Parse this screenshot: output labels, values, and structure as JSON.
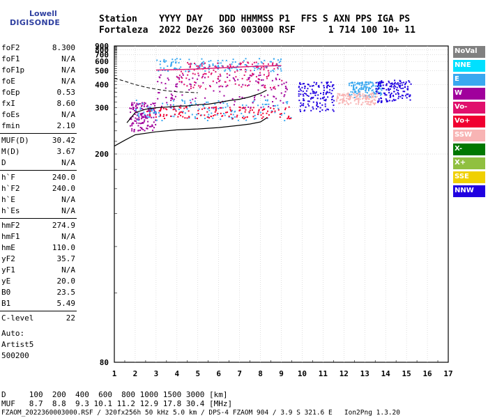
{
  "logo": {
    "line1": "Lowell",
    "line2": "DIGISONDE"
  },
  "header": {
    "row1": "Station    YYYY DAY   DDD HHMMSS P1  FFS S AXN PPS IGA PS",
    "row2": "Fortaleza  2022 Dez26 360 003000 RSF      1 714 100 10+ 11"
  },
  "params": [
    {
      "k": "foF2",
      "v": "8.300"
    },
    {
      "k": "foF1",
      "v": "N/A"
    },
    {
      "k": "foF1p",
      "v": "N/A"
    },
    {
      "k": "foE",
      "v": "N/A"
    },
    {
      "k": "foEp",
      "v": "0.53"
    },
    {
      "k": "fxI",
      "v": "8.60"
    },
    {
      "k": "foEs",
      "v": "N/A"
    },
    {
      "k": "fmin",
      "v": "2.10"
    },
    {
      "k": "MUF(D)",
      "v": "30.42"
    },
    {
      "k": "M(D)",
      "v": "3.67"
    },
    {
      "k": "D",
      "v": "N/A"
    },
    {
      "k": "h`F",
      "v": "240.0"
    },
    {
      "k": "h`F2",
      "v": "240.0"
    },
    {
      "k": "h`E",
      "v": "N/A"
    },
    {
      "k": "h`Es",
      "v": "N/A"
    },
    {
      "k": "hmF2",
      "v": "274.9"
    },
    {
      "k": "hmF1",
      "v": "N/A"
    },
    {
      "k": "hmE",
      "v": "110.0"
    },
    {
      "k": "yF2",
      "v": "35.7"
    },
    {
      "k": "yF1",
      "v": "N/A"
    },
    {
      "k": "yE",
      "v": "20.0"
    },
    {
      "k": "B0",
      "v": "23.5"
    },
    {
      "k": "B1",
      "v": "5.49"
    },
    {
      "k": "C-level",
      "v": "22"
    }
  ],
  "auto": {
    "l1": "Auto:",
    "l2": "Artist5",
    "l3": "500200"
  },
  "footer": {
    "row1": "D     100  200  400  600  800 1000 1500 3000 [km]",
    "row2": "MUF   8.7  8.8  9.3 10.1 11.2 12.9 17.8 30.4 [MHz]",
    "row3": "FZAOM_2022360003000.RSF / 320fx256h 50 kHz 5.0 km / DPS-4 FZAOM 904 / 3.9 S 321.6 E   Ion2Png 1.3.20"
  },
  "legend": [
    {
      "label": "NoVal",
      "color": "#808080"
    },
    {
      "label": "NNE",
      "color": "#00e0ff"
    },
    {
      "label": "E",
      "color": "#3aa8f0"
    },
    {
      "label": "W",
      "color": "#a0009c"
    },
    {
      "label": "Vo-",
      "color": "#e0106c"
    },
    {
      "label": "Vo+",
      "color": "#f00030"
    },
    {
      "label": "SSW",
      "color": "#f8b4b4"
    },
    {
      "label": "X-",
      "color": "#007800"
    },
    {
      "label": "X+",
      "color": "#90c040"
    },
    {
      "label": "SSE",
      "color": "#f0d000"
    },
    {
      "label": "NNW",
      "color": "#2000e0"
    }
  ],
  "chart_data": {
    "type": "scatter",
    "xlim": [
      1,
      17
    ],
    "ylim": [
      80,
      900
    ],
    "x_ticks": [
      1,
      2,
      3,
      4,
      5,
      6,
      7,
      8,
      9,
      10,
      11,
      12,
      13,
      14,
      15,
      16,
      17
    ],
    "y_ticks": [
      80,
      200,
      300,
      400,
      500,
      600,
      700,
      800,
      900
    ],
    "y_scale": "reciprocal",
    "grid": true,
    "legend_position": "right",
    "traces": [
      {
        "name": "F2 trace",
        "x": [
          1.6,
          2.0,
          2.5,
          3.0,
          3.5,
          4.0,
          4.5,
          5.0,
          5.5,
          6.0,
          6.5,
          7.0,
          7.5,
          8.0,
          8.3
        ],
        "y": [
          258,
          285,
          295,
          300,
          302,
          305,
          306,
          310,
          312,
          318,
          325,
          330,
          340,
          355,
          370
        ]
      },
      {
        "name": "Multihop trace",
        "x": [
          3.0,
          3.5,
          4.0,
          5.0,
          6.0,
          7.0,
          8.0,
          9.0
        ],
        "y": [
          505,
          508,
          510,
          515,
          525,
          535,
          545,
          550
        ]
      },
      {
        "name": "Profile curve",
        "x": [
          1.0,
          1.5,
          2.0,
          3.0,
          4.0,
          5.0,
          6.0,
          7.0,
          7.5,
          8.0,
          8.3
        ],
        "y": [
          212,
          222,
          232,
          238,
          242,
          244,
          247,
          252,
          255,
          260,
          270
        ]
      },
      {
        "name": "MUF curve",
        "x": [
          1.0,
          1.5,
          2.0,
          2.5,
          3.0,
          3.5,
          4.0,
          4.5,
          5.0
        ],
        "y": [
          440,
          420,
          400,
          385,
          375,
          367,
          362,
          360,
          358
        ]
      }
    ],
    "clusters": [
      {
        "x": [
          1.7,
          3.0
        ],
        "y": [
          240,
          320
        ],
        "color": "#a0009c"
      },
      {
        "x": [
          2.0,
          9.5
        ],
        "y": [
          265,
          330
        ],
        "color": "#3aa8f0"
      },
      {
        "x": [
          2.5,
          9.5
        ],
        "y": [
          270,
          305
        ],
        "color": "#f00030"
      },
      {
        "x": [
          3.0,
          9.3
        ],
        "y": [
          300,
          480
        ],
        "color": "#a0009c"
      },
      {
        "x": [
          3.0,
          9.0
        ],
        "y": [
          500,
          650
        ],
        "color": "#3aa8f0"
      },
      {
        "x": [
          4.0,
          9.0
        ],
        "y": [
          380,
          600
        ],
        "color": "#e0106c"
      },
      {
        "x": [
          9.8,
          11.5
        ],
        "y": [
          290,
          420
        ],
        "color": "#2000e0"
      },
      {
        "x": [
          12.2,
          13.8
        ],
        "y": [
          340,
          420
        ],
        "color": "#3aa8f0"
      },
      {
        "x": [
          13.5,
          15.2
        ],
        "y": [
          320,
          430
        ],
        "color": "#2000e0"
      },
      {
        "x": [
          11.6,
          13.6
        ],
        "y": [
          310,
          360
        ],
        "color": "#f8b4b4"
      }
    ]
  }
}
